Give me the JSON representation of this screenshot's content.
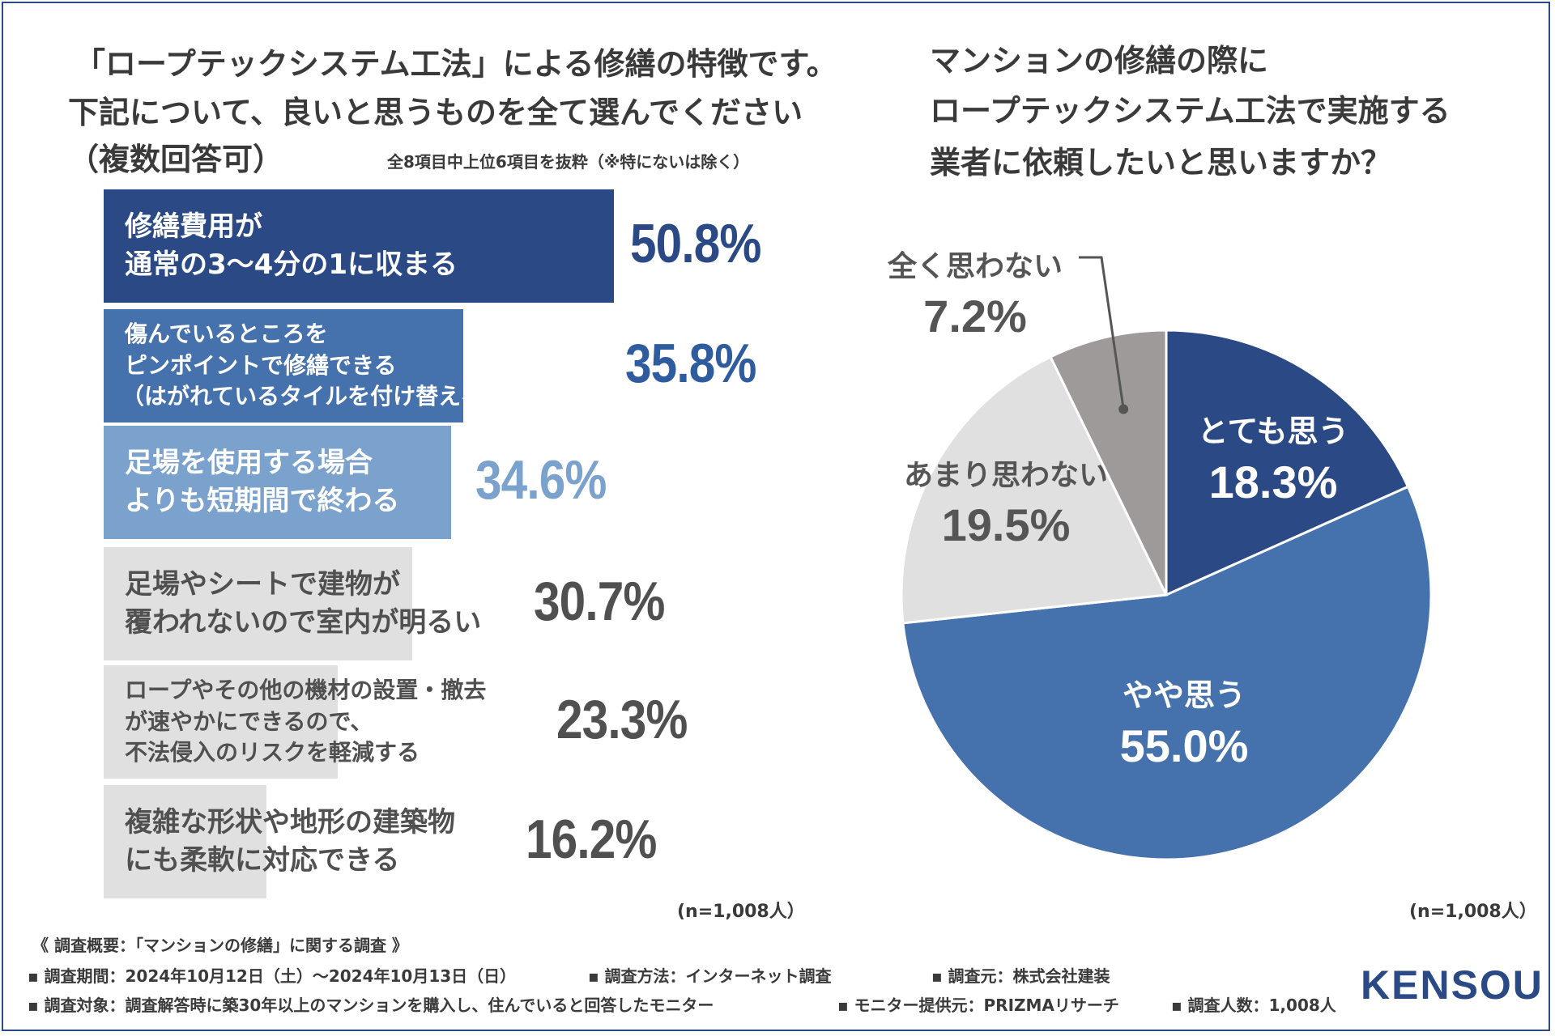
{
  "left_chart": {
    "title_lines": [
      "「ロープテックシステム工法」による修繕の特徴です。",
      "下記について、良いと思うものを全て選んでください",
      "（複数回答可）"
    ],
    "subnote": "全8項目中上位6項目を抜粋（※特にないは除く）",
    "n_note": "(n=1,008人）"
  },
  "right_chart": {
    "title_lines": [
      "マンションの修繕の際に",
      "ロープテックシステム工法で実施する",
      "業者に依頼したいと思いますか？"
    ],
    "n_note": "(n=1,008人）"
  },
  "chart_data": [
    {
      "type": "bar",
      "orientation": "horizontal",
      "title": "「ロープテックシステム工法」による修繕の特徴です。下記について、良いと思うものを全て選んでください（複数回答可）",
      "unit": "%",
      "categories": [
        [
          "修繕費用が",
          "通常の3〜4分の1に収まる"
        ],
        [
          "傷んでいるところを",
          "ピンポイントで修繕できる",
          "（はがれているタイルを付け替えるなど）"
        ],
        [
          "足場を使用する場合",
          "よりも短期間で終わる"
        ],
        [
          "足場やシートで建物が",
          "覆われないので室内が明るい"
        ],
        [
          "ロープやその他の機材の設置・撤去",
          "が速やかにできるので、",
          "不法侵入のリスクを軽減する"
        ],
        [
          "複雑な形状や地形の建築物",
          "にも柔軟に対応できる"
        ]
      ],
      "values": [
        50.8,
        35.8,
        34.6,
        30.7,
        23.3,
        16.2
      ],
      "value_labels": [
        "50.8%",
        "35.8%",
        "34.6%",
        "30.7%",
        "23.3%",
        "16.2%"
      ],
      "colors": [
        "#2b4a85",
        "#4571ad",
        "#7ba2cc",
        "#e0e0e0",
        "#e0e0e0",
        "#e0e0e0"
      ],
      "label_colors": [
        "#ffffff",
        "#ffffff",
        "#ffffff",
        "#505050",
        "#505050",
        "#505050"
      ],
      "value_colors": [
        "#2b4a85",
        "#2e5c9e",
        "#7ba2cc",
        "#505050",
        "#505050",
        "#505050"
      ],
      "xlim": [
        0,
        100
      ]
    },
    {
      "type": "pie",
      "title": "マンションの修繕の際にロープテックシステム工法で実施する業者に依頼したいと思いますか？",
      "labels": [
        "とても思う",
        "やや思う",
        "あまり思わない",
        "全く思わない"
      ],
      "values": [
        18.3,
        55.0,
        19.5,
        7.2
      ],
      "value_labels": [
        "18.3%",
        "55.0%",
        "19.5%",
        "7.2%"
      ],
      "colors": [
        "#2b4a85",
        "#4571ad",
        "#e0e0e0",
        "#9e9a99"
      ],
      "start": "12 o'clock, clockwise"
    }
  ],
  "footer": {
    "heading": "《 調査概要：「マンションの修繕」に関する調査 》",
    "period": "▪ 調査期間：2024年10月12日（土）〜2024年10月13日（日）",
    "method": "▪ 調査方法：インターネット調査",
    "source": "▪ 調査元：株式会社建装",
    "target": "▪ 調査対象：調査解答時に築30年以上のマンションを購入し、住んでいると回答したモニター",
    "provider": "▪ モニター提供元：PRIZMAリサーチ",
    "count": "▪ 調査人数：1,008人"
  },
  "logo": {
    "text": "KENSOU"
  }
}
